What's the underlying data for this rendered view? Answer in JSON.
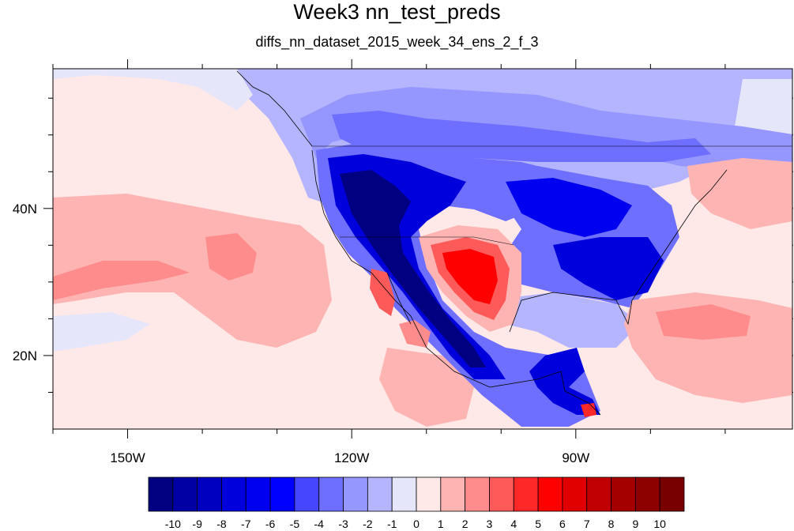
{
  "title": "Week3 nn_test_preds",
  "subtitle": "diffs_nn_dataset_2015_week_34_ens_2_f_3",
  "map": {
    "lon_range": [
      -160,
      -61
    ],
    "lat_range": [
      10,
      59
    ],
    "lon_ticks": [
      {
        "lon": -150,
        "label": "150W"
      },
      {
        "lon": -120,
        "label": "120W"
      },
      {
        "lon": -90,
        "label": "90W"
      }
    ],
    "lat_ticks": [
      {
        "lat": 40,
        "label": "40N"
      },
      {
        "lat": 20,
        "label": "20N"
      }
    ],
    "minor_lon_ticks": [
      -160,
      -140,
      -130,
      -110,
      -100,
      -80,
      -70
    ],
    "minor_lat_ticks": [
      15,
      25,
      30,
      35,
      45,
      50,
      55
    ]
  },
  "colorbar": {
    "levels": [
      "-10",
      "-9",
      "-8",
      "-7",
      "-6",
      "-5",
      "-4",
      "-3",
      "-2",
      "-1",
      "0",
      "1",
      "2",
      "3",
      "4",
      "5",
      "6",
      "7",
      "8",
      "9",
      "10"
    ],
    "colors": [
      "#000080",
      "#0000a4",
      "#0000c0",
      "#0000dc",
      "#0000f0",
      "#0000ff",
      "#4646ff",
      "#6e6eff",
      "#9696ff",
      "#b4b4ff",
      "#e6e6fa",
      "#ffe8e8",
      "#ffb4b4",
      "#ff8c8c",
      "#ff5a5a",
      "#ff2828",
      "#ff0000",
      "#e00000",
      "#c00000",
      "#a40000",
      "#8c0000",
      "#780000"
    ]
  }
}
